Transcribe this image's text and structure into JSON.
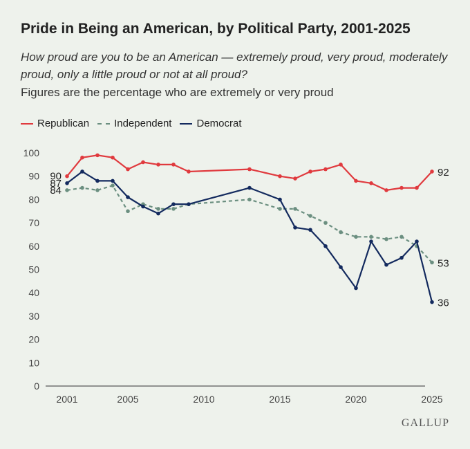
{
  "chart_data": {
    "type": "line",
    "title": "Pride in Being an American, by Political Party, 2001-2025",
    "subtitle": "How proud are you to be an American — extremely proud, very proud, moderately proud, only a little proud or not at all proud?",
    "note": "Figures are the percentage who are extremely or very proud",
    "xlabel": "",
    "ylabel": "",
    "xlim": [
      2001,
      2025
    ],
    "ylim": [
      0,
      100
    ],
    "x_ticks": [
      2001,
      2005,
      2010,
      2015,
      2020,
      2025
    ],
    "y_ticks": [
      0,
      10,
      20,
      30,
      40,
      50,
      60,
      70,
      80,
      90,
      100
    ],
    "grid": false,
    "legend_position": "top-left",
    "series": [
      {
        "name": "Republican",
        "color": "#e03a3e",
        "style": "solid",
        "points": [
          [
            2001,
            90
          ],
          [
            2002,
            98
          ],
          [
            2003,
            99
          ],
          [
            2004,
            98
          ],
          [
            2005,
            93
          ],
          [
            2006,
            96
          ],
          [
            2007,
            95
          ],
          [
            2008,
            95
          ],
          [
            2009,
            92
          ],
          [
            2013,
            93
          ],
          [
            2015,
            90
          ],
          [
            2016,
            89
          ],
          [
            2017,
            92
          ],
          [
            2018,
            93
          ],
          [
            2019,
            95
          ],
          [
            2020,
            88
          ],
          [
            2021,
            87
          ],
          [
            2022,
            84
          ],
          [
            2023,
            85
          ],
          [
            2024,
            85
          ],
          [
            2025,
            92
          ]
        ],
        "start_label": "90",
        "end_label": "92"
      },
      {
        "name": "Independent",
        "color": "#6b8f80",
        "style": "dashed",
        "points": [
          [
            2001,
            84
          ],
          [
            2002,
            85
          ],
          [
            2003,
            84
          ],
          [
            2004,
            86
          ],
          [
            2005,
            75
          ],
          [
            2006,
            78
          ],
          [
            2007,
            76
          ],
          [
            2008,
            76
          ],
          [
            2009,
            78
          ],
          [
            2013,
            80
          ],
          [
            2015,
            76
          ],
          [
            2016,
            76
          ],
          [
            2017,
            73
          ],
          [
            2018,
            70
          ],
          [
            2019,
            66
          ],
          [
            2020,
            64
          ],
          [
            2021,
            64
          ],
          [
            2022,
            63
          ],
          [
            2023,
            64
          ],
          [
            2024,
            60
          ],
          [
            2025,
            53
          ]
        ],
        "start_label": "84",
        "end_label": "53"
      },
      {
        "name": "Democrat",
        "color": "#132a5e",
        "style": "solid",
        "points": [
          [
            2001,
            87
          ],
          [
            2002,
            92
          ],
          [
            2003,
            88
          ],
          [
            2004,
            88
          ],
          [
            2005,
            81
          ],
          [
            2006,
            77
          ],
          [
            2007,
            74
          ],
          [
            2008,
            78
          ],
          [
            2009,
            78
          ],
          [
            2013,
            85
          ],
          [
            2015,
            80
          ],
          [
            2016,
            68
          ],
          [
            2017,
            67
          ],
          [
            2018,
            60
          ],
          [
            2019,
            51
          ],
          [
            2020,
            42
          ],
          [
            2021,
            62
          ],
          [
            2022,
            52
          ],
          [
            2023,
            55
          ],
          [
            2024,
            62
          ],
          [
            2025,
            36
          ]
        ],
        "start_label": "87",
        "end_label": "36"
      }
    ]
  },
  "brand": "GALLUP"
}
